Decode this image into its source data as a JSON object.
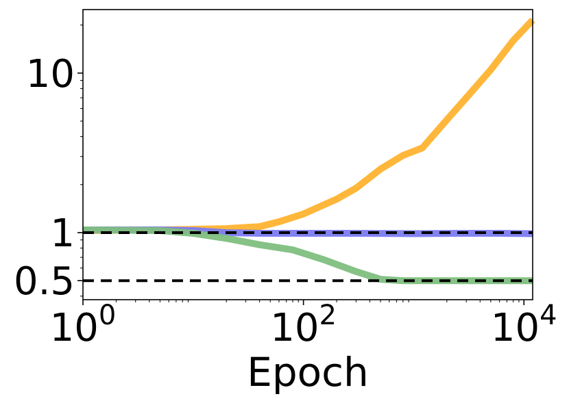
{
  "chart_data": {
    "type": "line",
    "title": "",
    "xlabel": "Epoch",
    "ylabel": "",
    "x_scale": "log",
    "y_scale": "log",
    "xlim": [
      1,
      12000
    ],
    "ylim": [
      0.38,
      25
    ],
    "x_ticks": [
      {
        "value": 1,
        "base": "10",
        "exp": "0"
      },
      {
        "value": 100,
        "base": "10",
        "exp": "2"
      },
      {
        "value": 10000,
        "base": "10",
        "exp": "4"
      }
    ],
    "y_ticks": [
      {
        "value": 0.5,
        "label": "0.5"
      },
      {
        "value": 1,
        "label": "1"
      },
      {
        "value": 10,
        "label": "10"
      }
    ],
    "reference_lines": [
      {
        "y": 1,
        "style": "dashed",
        "color": "#000000"
      },
      {
        "y": 0.5,
        "style": "dashed",
        "color": "#000000"
      }
    ],
    "grid": false,
    "legend": "none",
    "series": [
      {
        "color": "#FFB330",
        "points": [
          [
            1,
            1.03
          ],
          [
            5,
            1.04
          ],
          [
            10,
            1.05
          ],
          [
            20,
            1.06
          ],
          [
            40,
            1.09
          ],
          [
            60,
            1.17
          ],
          [
            100,
            1.31
          ],
          [
            200,
            1.62
          ],
          [
            300,
            1.9
          ],
          [
            500,
            2.5
          ],
          [
            800,
            3.05
          ],
          [
            1200,
            3.4
          ],
          [
            2000,
            5.1
          ],
          [
            3000,
            7.0
          ],
          [
            5000,
            10.5
          ],
          [
            8000,
            16.0
          ],
          [
            12000,
            21.5
          ]
        ]
      },
      {
        "color": "#7B7BF2",
        "points": [
          [
            1,
            1.04
          ],
          [
            5,
            1.04
          ],
          [
            10,
            1.03
          ],
          [
            20,
            1.0
          ],
          [
            40,
            0.99
          ],
          [
            100,
            0.99
          ],
          [
            300,
            0.99
          ],
          [
            1000,
            0.985
          ],
          [
            3000,
            0.99
          ],
          [
            6000,
            0.99
          ],
          [
            12000,
            0.985
          ]
        ]
      },
      {
        "color": "#80BF80",
        "points": [
          [
            1,
            1.04
          ],
          [
            5,
            1.03
          ],
          [
            10,
            0.99
          ],
          [
            20,
            0.92
          ],
          [
            40,
            0.84
          ],
          [
            80,
            0.78
          ],
          [
            150,
            0.68
          ],
          [
            300,
            0.57
          ],
          [
            500,
            0.51
          ],
          [
            800,
            0.5
          ],
          [
            2000,
            0.5
          ],
          [
            12000,
            0.5
          ]
        ]
      }
    ]
  }
}
